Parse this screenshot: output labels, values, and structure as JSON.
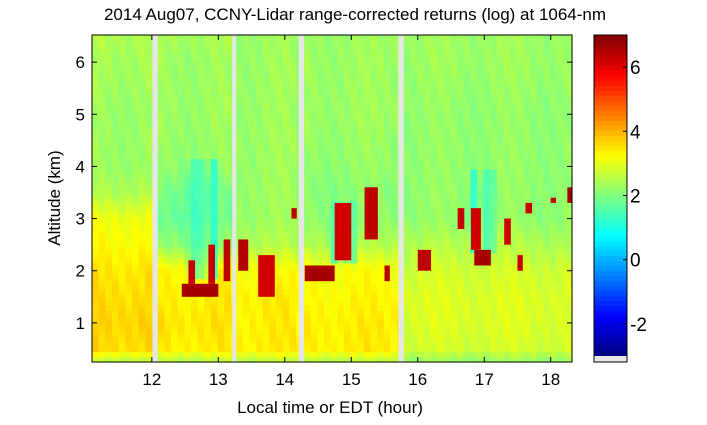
{
  "chart_data": {
    "type": "heatmap",
    "title": "2014 Aug07, CCNY-Lidar range-corrected returns (log) at 1064-nm",
    "xlabel": "Local time or EDT (hour)",
    "ylabel": "Altitude (km)",
    "xlim": [
      11.1,
      18.32
    ],
    "ylim": [
      0.25,
      6.52
    ],
    "xticks": [
      "12",
      "13",
      "14",
      "15",
      "16",
      "17",
      "18"
    ],
    "yticks": [
      "1",
      "2",
      "3",
      "4",
      "5",
      "6"
    ],
    "colormap": "jet",
    "clim": [
      -3,
      7
    ],
    "colorbar_ticks": [
      "-2",
      "0",
      "2",
      "4",
      "6"
    ],
    "colorbar_position": "right",
    "missing_color": "#e6e6e6",
    "data_gaps": [
      [
        12.0,
        12.09
      ],
      [
        13.2,
        13.27
      ],
      [
        14.2,
        14.29
      ],
      [
        15.7,
        15.79
      ]
    ],
    "profile_altitudes_km": [
      0.25,
      0.5,
      1,
      1.5,
      2,
      2.5,
      3,
      3.5,
      4,
      5,
      6,
      6.5
    ],
    "background_periods": [
      {
        "time": [
          11.1,
          12.0
        ],
        "values": [
          2.5,
          3.6,
          3.7,
          3.6,
          3.5,
          3.3,
          3.1,
          2.5,
          2.3,
          2.3,
          2.4,
          2.5
        ]
      },
      {
        "time": [
          12.09,
          13.2
        ],
        "values": [
          2.5,
          3.4,
          3.5,
          3.4,
          3.3,
          2.2,
          1.8,
          1.9,
          2.2,
          2.3,
          2.3,
          2.4
        ]
      },
      {
        "time": [
          13.27,
          14.2
        ],
        "values": [
          2.5,
          3.4,
          3.4,
          3.4,
          3.2,
          2.5,
          2.3,
          2.3,
          2.3,
          2.3,
          2.3,
          2.3
        ]
      },
      {
        "time": [
          14.29,
          15.7
        ],
        "values": [
          2.5,
          3.4,
          3.4,
          3.3,
          3.2,
          2.5,
          2.2,
          2.1,
          2.2,
          2.3,
          2.3,
          2.3
        ]
      },
      {
        "time": [
          15.79,
          18.32
        ],
        "values": [
          2.2,
          2.8,
          2.9,
          2.9,
          2.8,
          2.5,
          2.2,
          2.2,
          2.2,
          2.2,
          2.3,
          2.3
        ]
      }
    ],
    "low_signal_streaks": [
      {
        "time": [
          12.45,
          13.0
        ],
        "alt": [
          1.9,
          4.2
        ],
        "value": 1.2
      },
      {
        "time": [
          14.6,
          15.1
        ],
        "alt": [
          2.2,
          3.4
        ],
        "value": 1.5
      },
      {
        "time": [
          16.8,
          17.15
        ],
        "alt": [
          2.4,
          4.0
        ],
        "value": 1.3
      }
    ],
    "clouds": [
      {
        "time": [
          12.45,
          13.0
        ],
        "alt": [
          1.5,
          1.75
        ],
        "value": 6.6
      },
      {
        "time": [
          12.55,
          12.65
        ],
        "alt": [
          1.75,
          2.2
        ],
        "value": 6.3
      },
      {
        "time": [
          12.85,
          12.95
        ],
        "alt": [
          1.75,
          2.5
        ],
        "value": 6.3
      },
      {
        "time": [
          13.08,
          13.18
        ],
        "alt": [
          1.8,
          2.6
        ],
        "value": 6.4
      },
      {
        "time": [
          13.3,
          13.45
        ],
        "alt": [
          2.0,
          2.6
        ],
        "value": 6.5
      },
      {
        "time": [
          13.6,
          13.85
        ],
        "alt": [
          1.5,
          2.3
        ],
        "value": 6.2
      },
      {
        "time": [
          14.1,
          14.18
        ],
        "alt": [
          3.0,
          3.2
        ],
        "value": 6.4
      },
      {
        "time": [
          14.3,
          14.75
        ],
        "alt": [
          1.8,
          2.1
        ],
        "value": 6.6
      },
      {
        "time": [
          14.75,
          15.0
        ],
        "alt": [
          2.2,
          3.3
        ],
        "value": 6.2
      },
      {
        "time": [
          15.2,
          15.4
        ],
        "alt": [
          2.6,
          3.6
        ],
        "value": 6.4
      },
      {
        "time": [
          15.5,
          15.58
        ],
        "alt": [
          1.8,
          2.1
        ],
        "value": 6.5
      },
      {
        "time": [
          16.0,
          16.2
        ],
        "alt": [
          2.0,
          2.4
        ],
        "value": 6.4
      },
      {
        "time": [
          16.6,
          16.7
        ],
        "alt": [
          2.8,
          3.2
        ],
        "value": 6.3
      },
      {
        "time": [
          16.85,
          17.1
        ],
        "alt": [
          2.1,
          2.4
        ],
        "value": 6.6
      },
      {
        "time": [
          16.8,
          16.95
        ],
        "alt": [
          2.4,
          3.2
        ],
        "value": 6.2
      },
      {
        "time": [
          17.3,
          17.4
        ],
        "alt": [
          2.5,
          3.0
        ],
        "value": 6.2
      },
      {
        "time": [
          17.5,
          17.58
        ],
        "alt": [
          2.0,
          2.3
        ],
        "value": 6.3
      },
      {
        "time": [
          17.62,
          17.72
        ],
        "alt": [
          3.1,
          3.3
        ],
        "value": 6.3
      },
      {
        "time": [
          18.0,
          18.08
        ],
        "alt": [
          3.3,
          3.4
        ],
        "value": 6.3
      },
      {
        "time": [
          18.25,
          18.32
        ],
        "alt": [
          3.3,
          3.6
        ],
        "value": 6.6
      }
    ]
  }
}
